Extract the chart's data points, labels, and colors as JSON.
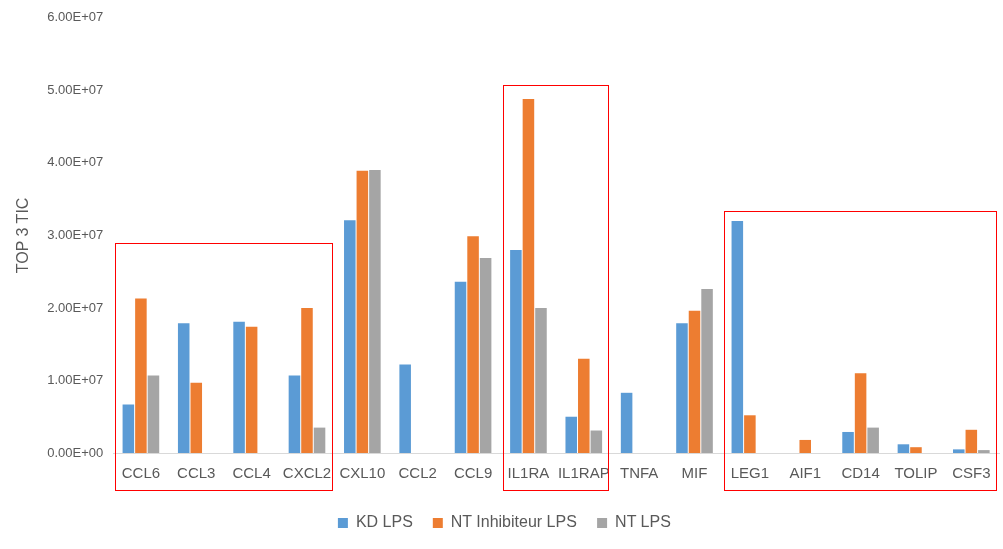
{
  "chart_data": {
    "type": "bar",
    "ylabel": "TOP 3 TIC",
    "categories": [
      "CCL6",
      "CCL3",
      "CCL4",
      "CXCL2",
      "CXL10",
      "CCL2",
      "CCL9",
      "IL1RA",
      "IL1RAP",
      "TNFA",
      "MIF",
      "LEG1",
      "AIF1",
      "CD14",
      "TOLIP",
      "CSF3"
    ],
    "series": [
      {
        "name": "KD LPS",
        "color": "#5b9bd5",
        "values": [
          6700000,
          17900000,
          18100000,
          10700000,
          32100000,
          12200000,
          23600000,
          28000000,
          5000000,
          8300000,
          17900000,
          32000000,
          null,
          2900000,
          1200000,
          500000
        ]
      },
      {
        "name": "NT Inhibiteur LPS",
        "color": "#ed7d31",
        "values": [
          21300000,
          9700000,
          17400000,
          20000000,
          38900000,
          null,
          29900000,
          48800000,
          13000000,
          null,
          19600000,
          5200000,
          1800000,
          11000000,
          800000,
          3200000
        ]
      },
      {
        "name": "NT LPS",
        "color": "#a5a5a5",
        "values": [
          10700000,
          null,
          null,
          3500000,
          39000000,
          null,
          26900000,
          20000000,
          3100000,
          null,
          22600000,
          null,
          null,
          3500000,
          null,
          400000
        ]
      }
    ],
    "ylim": [
      0,
      60000000
    ],
    "yticks": [
      {
        "value": 0,
        "label": "0.00E+00"
      },
      {
        "value": 10000000,
        "label": "1.00E+07"
      },
      {
        "value": 20000000,
        "label": "2.00E+07"
      },
      {
        "value": 30000000,
        "label": "3.00E+07"
      },
      {
        "value": 40000000,
        "label": "4.00E+07"
      },
      {
        "value": 50000000,
        "label": "5.00E+07"
      },
      {
        "value": 60000000,
        "label": "6.00E+07"
      }
    ],
    "grid": false,
    "legend": "bottom"
  }
}
